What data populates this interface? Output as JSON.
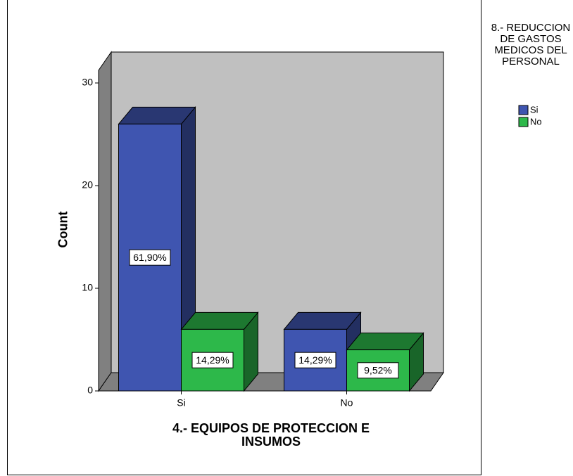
{
  "chart_data": {
    "type": "bar3d",
    "categories": [
      "Si",
      "No"
    ],
    "series": [
      {
        "name": "Si",
        "color": "#3f55b0",
        "values": [
          26,
          6
        ],
        "percent_labels": [
          "61,90%",
          "14,29%"
        ]
      },
      {
        "name": "No",
        "color": "#2db84a",
        "values": [
          6,
          4
        ],
        "percent_labels": [
          "14,29%",
          "9,52%"
        ]
      }
    ],
    "x_label": "4.- EQUIPOS DE PROTECCION E INSUMOS",
    "y_label": "Count",
    "legend_title": "8.- REDUCCION DE GASTOS MEDICOS DEL PERSONAL",
    "ylim": [
      0,
      30
    ],
    "yticks": [
      0,
      10,
      20,
      30
    ]
  }
}
